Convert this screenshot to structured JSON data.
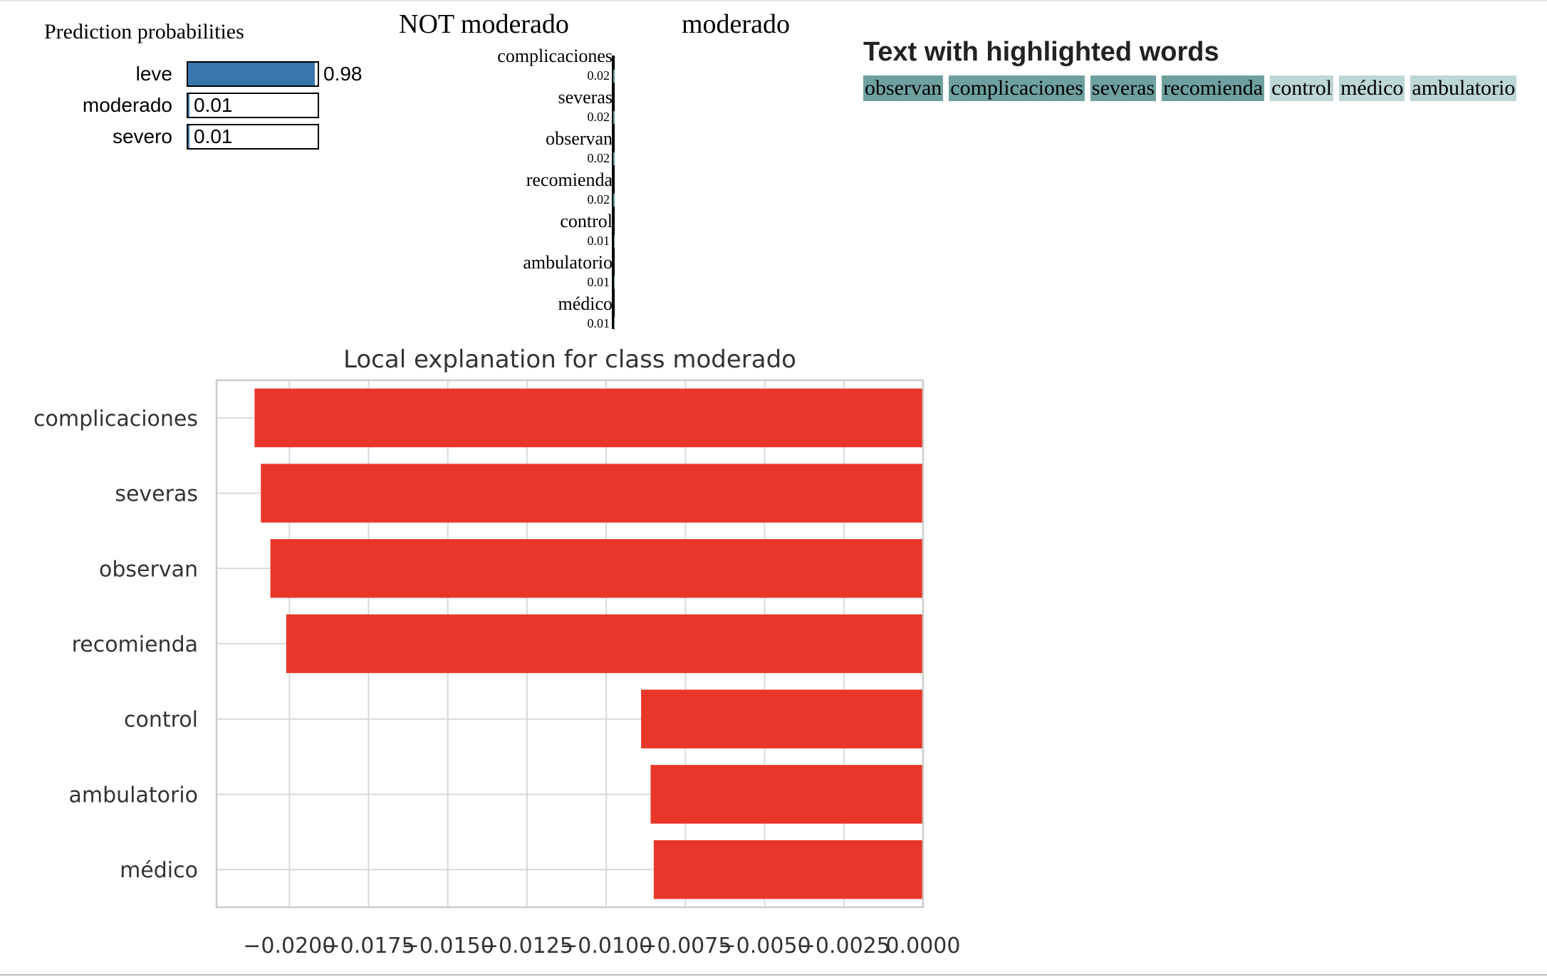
{
  "prediction": {
    "title": "Prediction probabilities",
    "items": [
      {
        "label": "leve",
        "value": "0.98",
        "fraction": 0.98,
        "color": "#3a76ae"
      },
      {
        "label": "moderado",
        "value": "0.01",
        "fraction": 0.01,
        "color": "#3a76ae"
      },
      {
        "label": "severo",
        "value": "0.01",
        "fraction": 0.01,
        "color": "#3a76ae"
      }
    ]
  },
  "explanation": {
    "not_label": "NOT moderado",
    "class_label": "moderado",
    "not_color": "#5f9ea0",
    "class_color": "#ef8d3a",
    "features": [
      {
        "name": "complicaciones",
        "value": "0.02",
        "weight": 0.02
      },
      {
        "name": "severas",
        "value": "0.02",
        "weight": 0.02
      },
      {
        "name": "observan",
        "value": "0.02",
        "weight": 0.02
      },
      {
        "name": "recomienda",
        "value": "0.02",
        "weight": 0.02
      },
      {
        "name": "control",
        "value": "0.01",
        "weight": 0.01
      },
      {
        "name": "ambulatorio",
        "value": "0.01",
        "weight": 0.01
      },
      {
        "name": "médico",
        "value": "0.01",
        "weight": 0.01
      }
    ]
  },
  "highlight": {
    "title": "Text with highlighted words",
    "words": [
      {
        "text": "observan",
        "color": "#6fa0a0"
      },
      {
        "text": "complicaciones",
        "color": "#6fa0a0"
      },
      {
        "text": "severas",
        "color": "#6fa0a0"
      },
      {
        "text": "recomienda",
        "color": "#6fa0a0"
      },
      {
        "text": "control",
        "color": "#bdd6d6"
      },
      {
        "text": "médico",
        "color": "#bdd6d6"
      },
      {
        "text": "ambulatorio",
        "color": "#bdd6d6"
      }
    ]
  },
  "chart_data": {
    "type": "bar",
    "orientation": "horizontal",
    "title": "Local explanation for class moderado",
    "xlabel": "",
    "ylabel": "",
    "categories": [
      "complicaciones",
      "severas",
      "observan",
      "recomienda",
      "control",
      "ambulatorio",
      "médico"
    ],
    "values": [
      -0.0211,
      -0.0209,
      -0.0206,
      -0.0201,
      -0.0089,
      -0.0086,
      -0.0085
    ],
    "xlim": [
      -0.0223,
      0.0
    ],
    "xticks": [
      -0.02,
      -0.0175,
      -0.015,
      -0.0125,
      -0.01,
      -0.0075,
      -0.005,
      -0.0025,
      0.0
    ],
    "xtick_labels": [
      "−0.0200",
      "−0.0175",
      "−0.0150",
      "−0.0125",
      "−0.0100",
      "−0.0075",
      "−0.0050",
      "−0.0025",
      "0.0000"
    ],
    "bar_color": "#e8372a",
    "grid": true,
    "legend": "none"
  }
}
